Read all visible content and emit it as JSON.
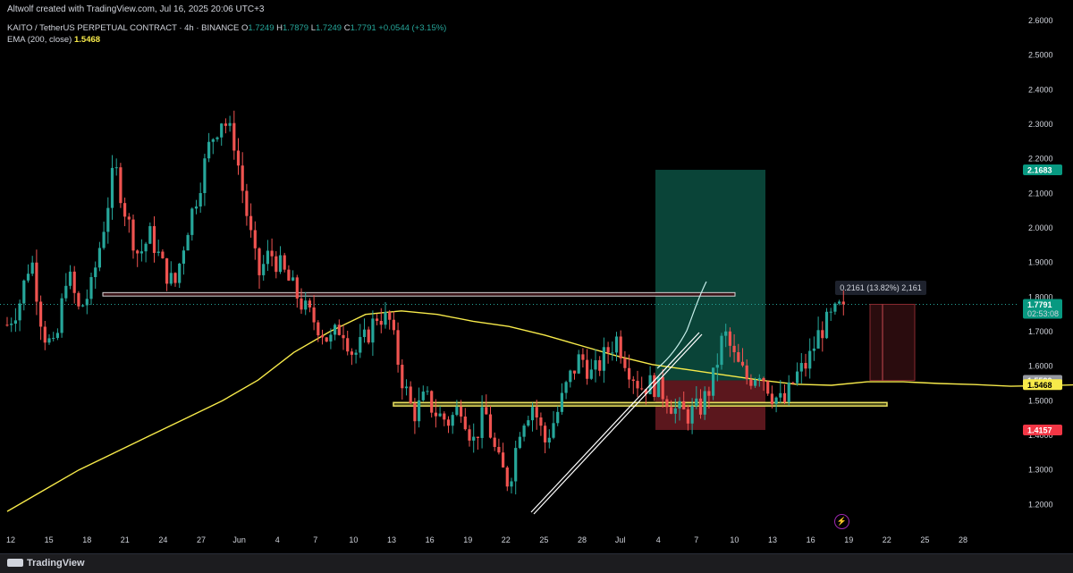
{
  "header": {
    "credit": "Altwolf created with TradingView.com, Jul 16, 2025 20:06 UTC+3",
    "symbol_line": "KAITO / TetherUS PERPETUAL CONTRACT · 4h · BINANCE",
    "ohlc": {
      "o_label": "O",
      "o": "1.7249",
      "h_label": "H",
      "h": "1.7879",
      "l_label": "L",
      "l": "1.7249",
      "c_label": "C",
      "c": "1.7791",
      "change": "+0.0544 (+3.15%)"
    },
    "ema_label": "EMA (200, close)",
    "ema_value": "1.5468"
  },
  "footer": {
    "brand": "TradingView"
  },
  "colors": {
    "up": "#26a69a",
    "down": "#ef5350",
    "ema": "#f7ea4a",
    "target_zone": "#0d5546",
    "stop_zone": "#6b1b22",
    "background": "#000000"
  },
  "chart_data": {
    "type": "candlestick",
    "timeframe": "4h",
    "ylim": [
      1.15,
      2.62
    ],
    "y_ticks": [
      "2.6000",
      "2.5000",
      "2.4000",
      "2.3000",
      "2.2000",
      "2.1000",
      "2.0000",
      "1.9000",
      "1.8000",
      "1.7000",
      "1.6000",
      "1.5000",
      "1.4000",
      "1.3000",
      "1.2000"
    ],
    "x_ticks": [
      "12",
      "15",
      "18",
      "21",
      "24",
      "27",
      "Jun",
      "4",
      "7",
      "10",
      "13",
      "16",
      "19",
      "22",
      "25",
      "28",
      "Jul",
      "4",
      "7",
      "10",
      "13",
      "16",
      "19",
      "22",
      "25",
      "28"
    ],
    "price_tags": [
      {
        "value": 2.1683,
        "text": "2.1683",
        "color": "#089981"
      },
      {
        "value": 1.7791,
        "text": "1.7791",
        "sub": "02:53:08",
        "color": "#089981"
      },
      {
        "value": 1.559,
        "text": "1.5590",
        "color": "#9598a1"
      },
      {
        "value": 1.5468,
        "text": "1.5468",
        "color": "#f7ea4a"
      },
      {
        "value": 1.4157,
        "text": "1.4157",
        "color": "#f23645"
      }
    ],
    "measure_label": "0.2161 (13.82%) 2,161",
    "zones": {
      "resistance": [
        1.803,
        1.813
      ],
      "support": [
        1.485,
        1.495
      ],
      "long_position": {
        "entry": 1.559,
        "target": 2.1683,
        "stop": 1.4157
      }
    },
    "ema_path": [
      [
        0,
        1.18
      ],
      [
        3,
        1.24
      ],
      [
        6,
        1.3
      ],
      [
        9,
        1.35
      ],
      [
        12,
        1.4
      ],
      [
        15,
        1.45
      ],
      [
        18,
        1.5
      ],
      [
        21,
        1.56
      ],
      [
        24,
        1.64
      ],
      [
        27,
        1.7
      ],
      [
        30,
        1.75
      ],
      [
        33,
        1.76
      ],
      [
        36,
        1.75
      ],
      [
        39,
        1.73
      ],
      [
        42,
        1.715
      ],
      [
        45,
        1.69
      ],
      [
        48,
        1.66
      ],
      [
        51,
        1.63
      ],
      [
        54,
        1.605
      ],
      [
        57,
        1.59
      ],
      [
        60,
        1.575
      ],
      [
        63,
        1.56
      ],
      [
        66,
        1.548
      ],
      [
        69,
        1.545
      ],
      [
        72,
        1.555
      ],
      [
        75,
        1.555
      ],
      [
        78,
        1.55
      ],
      [
        81,
        1.547
      ],
      [
        84,
        1.542
      ],
      [
        87,
        1.544
      ],
      [
        90,
        1.547
      ],
      [
        93,
        1.553
      ]
    ],
    "path_keys": [
      [
        0,
        1.72
      ],
      [
        1,
        1.78
      ],
      [
        2,
        1.92
      ],
      [
        3,
        1.7
      ],
      [
        4,
        1.64
      ],
      [
        5,
        1.88
      ],
      [
        6,
        1.76
      ],
      [
        7,
        1.82
      ],
      [
        8,
        1.99
      ],
      [
        9,
        2.18
      ],
      [
        10,
        2.03
      ],
      [
        11,
        1.92
      ],
      [
        12,
        1.98
      ],
      [
        13,
        1.89
      ],
      [
        14,
        1.83
      ],
      [
        15,
        1.99
      ],
      [
        16,
        2.11
      ],
      [
        17,
        2.25
      ],
      [
        18,
        2.32
      ],
      [
        19,
        2.25
      ],
      [
        20,
        2.05
      ],
      [
        21,
        1.86
      ],
      [
        22,
        1.93
      ],
      [
        23,
        1.88
      ],
      [
        24,
        1.82
      ],
      [
        25,
        1.76
      ],
      [
        26,
        1.72
      ],
      [
        27,
        1.67
      ],
      [
        28,
        1.72
      ],
      [
        29,
        1.63
      ],
      [
        30,
        1.68
      ],
      [
        31,
        1.75
      ],
      [
        32,
        1.73
      ],
      [
        33,
        1.57
      ],
      [
        34,
        1.46
      ],
      [
        35,
        1.51
      ],
      [
        36,
        1.46
      ],
      [
        37,
        1.44
      ],
      [
        38,
        1.49
      ],
      [
        39,
        1.38
      ],
      [
        40,
        1.47
      ],
      [
        41,
        1.33
      ],
      [
        42,
        1.26
      ],
      [
        43,
        1.44
      ],
      [
        44,
        1.49
      ],
      [
        45,
        1.38
      ],
      [
        46,
        1.46
      ],
      [
        47,
        1.56
      ],
      [
        48,
        1.63
      ],
      [
        49,
        1.57
      ],
      [
        50,
        1.63
      ],
      [
        51,
        1.68
      ],
      [
        52,
        1.6
      ],
      [
        53,
        1.54
      ],
      [
        54,
        1.55
      ],
      [
        55,
        1.52
      ],
      [
        56,
        1.47
      ],
      [
        57,
        1.46
      ],
      [
        58,
        1.48
      ],
      [
        59,
        1.55
      ],
      [
        60,
        1.7
      ],
      [
        61,
        1.61
      ],
      [
        62,
        1.56
      ],
      [
        63,
        1.59
      ],
      [
        64,
        1.52
      ],
      [
        65,
        1.49
      ],
      [
        66,
        1.57
      ],
      [
        67,
        1.61
      ],
      [
        68,
        1.7
      ],
      [
        69,
        1.74
      ],
      [
        70,
        1.78
      ]
    ]
  }
}
